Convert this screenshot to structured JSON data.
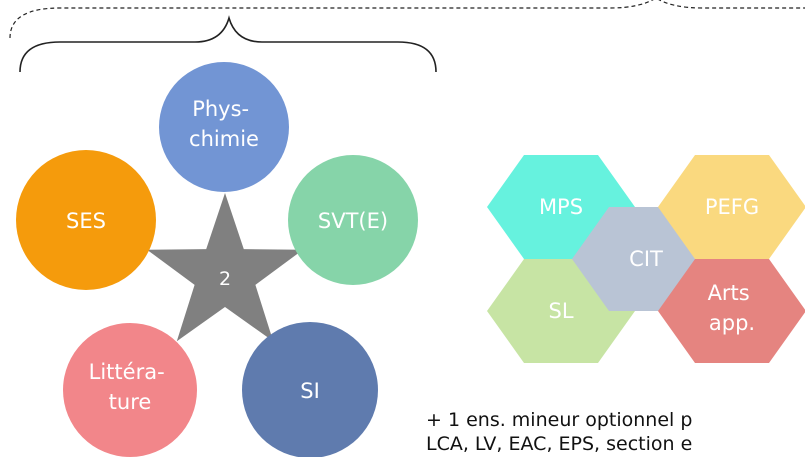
{
  "star_number": "2",
  "circles": [
    {
      "id": "phys",
      "lines": [
        "Phys-",
        "chimie"
      ],
      "color": "#7295D4"
    },
    {
      "id": "svt",
      "lines": [
        "SVT(E)"
      ],
      "color": "#86D4A9"
    },
    {
      "id": "si",
      "lines": [
        "SI"
      ],
      "color": "#5F7BAE"
    },
    {
      "id": "litt",
      "lines": [
        "Littéra-",
        "ture"
      ],
      "color": "#F2868A"
    },
    {
      "id": "ses",
      "lines": [
        "SES"
      ],
      "color": "#F59B0C"
    }
  ],
  "hexagons": [
    {
      "id": "mps",
      "lines": [
        "MPS"
      ],
      "color": "#66F2DE"
    },
    {
      "id": "sl",
      "lines": [
        "SL"
      ],
      "color": "#C7E4A4"
    },
    {
      "id": "cit",
      "lines": [
        "CIT"
      ],
      "color": "#B9C4D5"
    },
    {
      "id": "pefg",
      "lines": [
        "PEFG"
      ],
      "color": "#FAD97F"
    },
    {
      "id": "arts",
      "lines": [
        "Arts",
        "app."
      ],
      "color": "#E58480"
    }
  ],
  "footer": {
    "line1": "+ 1 ens. mineur optionnel p",
    "line2": "LCA, LV, EAC, EPS, section e"
  },
  "colors": {
    "star": "#808080",
    "brace": "#222222"
  }
}
